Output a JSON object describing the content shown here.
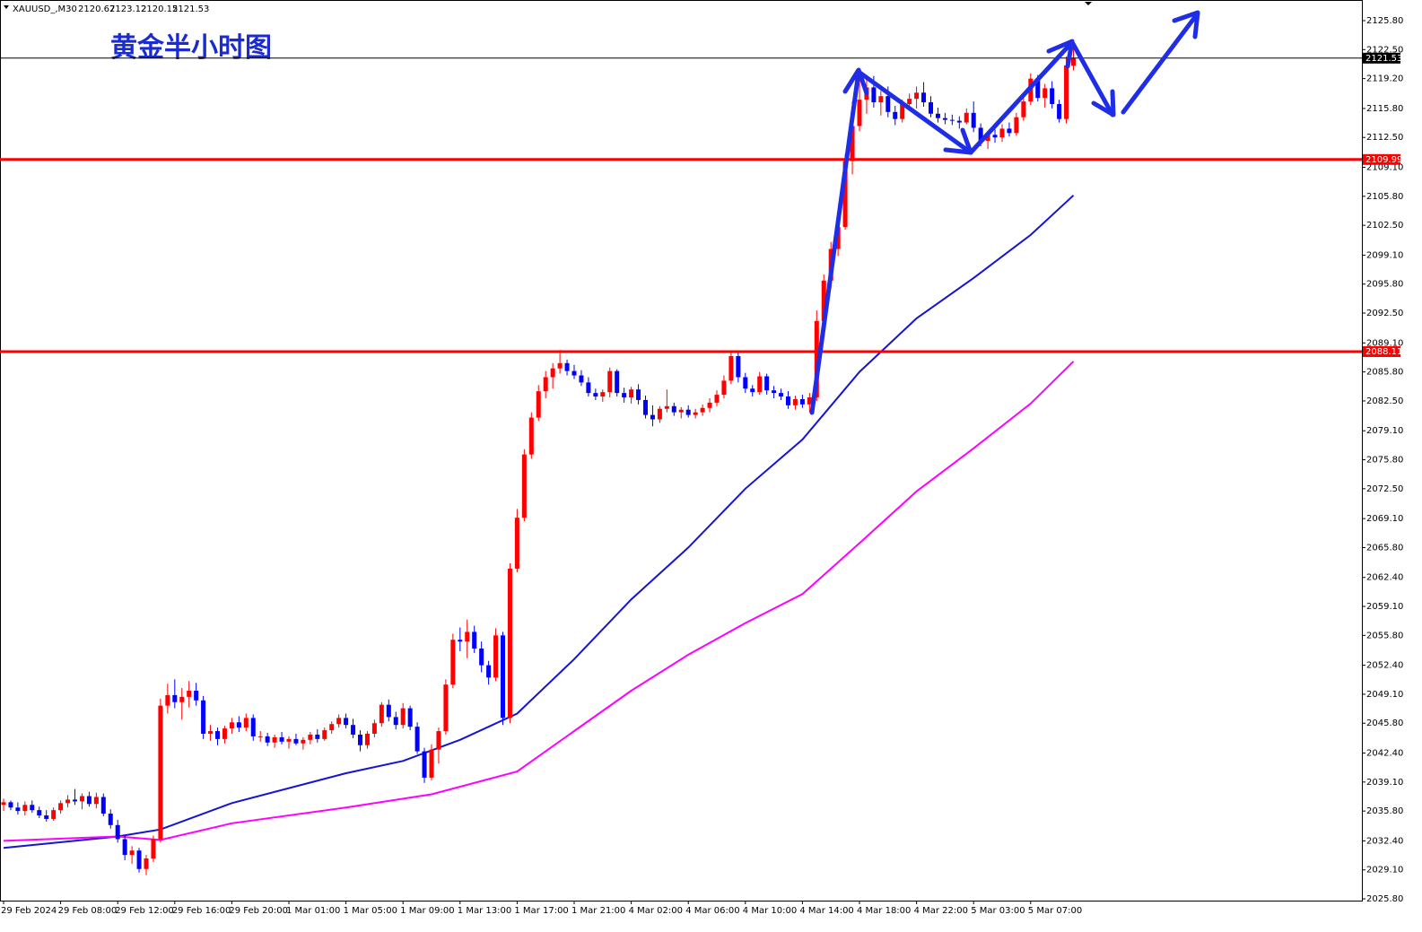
{
  "chart_data": {
    "type": "candlestick",
    "symbol": "XAUUSD_,M30",
    "title": "黄金半小时图",
    "up_color": "#ff0000",
    "down_color": "#0000ff",
    "ylim": [
      2025.6,
      2128.15
    ],
    "yticks": [
      {
        "value": 2125.8,
        "label": "2125.80"
      },
      {
        "value": 2122.5,
        "label": "2122.50"
      },
      {
        "value": 2119.2,
        "label": "2119.20"
      },
      {
        "value": 2115.8,
        "label": "2115.80"
      },
      {
        "value": 2112.5,
        "label": "2112.50"
      },
      {
        "value": 2109.1,
        "label": "2109.10"
      },
      {
        "value": 2105.8,
        "label": "2105.80"
      },
      {
        "value": 2102.5,
        "label": "2102.50"
      },
      {
        "value": 2099.1,
        "label": "2099.10"
      },
      {
        "value": 2095.8,
        "label": "2095.80"
      },
      {
        "value": 2092.5,
        "label": "2092.50"
      },
      {
        "value": 2089.1,
        "label": "2089.10"
      },
      {
        "value": 2085.8,
        "label": "2085.80"
      },
      {
        "value": 2082.5,
        "label": "2082.50"
      },
      {
        "value": 2079.1,
        "label": "2079.10"
      },
      {
        "value": 2075.8,
        "label": "2075.80"
      },
      {
        "value": 2072.5,
        "label": "2072.50"
      },
      {
        "value": 2069.1,
        "label": "2069.10"
      },
      {
        "value": 2065.8,
        "label": "2065.80"
      },
      {
        "value": 2062.4,
        "label": "2062.40"
      },
      {
        "value": 2059.1,
        "label": "2059.10"
      },
      {
        "value": 2055.8,
        "label": "2055.80"
      },
      {
        "value": 2052.4,
        "label": "2052.40"
      },
      {
        "value": 2049.1,
        "label": "2049.10"
      },
      {
        "value": 2045.8,
        "label": "2045.80"
      },
      {
        "value": 2042.4,
        "label": "2042.40"
      },
      {
        "value": 2039.1,
        "label": "2039.10"
      },
      {
        "value": 2035.8,
        "label": "2035.80"
      },
      {
        "value": 2032.4,
        "label": "2032.40"
      },
      {
        "value": 2029.1,
        "label": "2029.10"
      },
      {
        "value": 2025.8,
        "label": "2025.80"
      }
    ],
    "categories": [
      "29 Feb 2024",
      null,
      null,
      null,
      null,
      null,
      null,
      null,
      "29 Feb 08:00",
      null,
      null,
      null,
      null,
      null,
      null,
      null,
      "29 Feb 12:00",
      null,
      null,
      null,
      null,
      null,
      null,
      null,
      "29 Feb 16:00",
      null,
      null,
      null,
      null,
      null,
      null,
      null,
      "29 Feb 20:00",
      null,
      null,
      null,
      null,
      null,
      null,
      null,
      "1 Mar 01:00",
      null,
      null,
      null,
      null,
      null,
      null,
      null,
      "1 Mar 05:00",
      null,
      null,
      null,
      null,
      null,
      null,
      null,
      "1 Mar 09:00",
      null,
      null,
      null,
      null,
      null,
      null,
      null,
      "1 Mar 13:00",
      null,
      null,
      null,
      null,
      null,
      null,
      null,
      "1 Mar 17:00",
      null,
      null,
      null,
      null,
      null,
      null,
      null,
      "1 Mar 21:00",
      null,
      null,
      null,
      null,
      null,
      null,
      null,
      "4 Mar 02:00",
      null,
      null,
      null,
      null,
      null,
      null,
      null,
      "4 Mar 06:00",
      null,
      null,
      null,
      null,
      null,
      null,
      null,
      "4 Mar 10:00",
      null,
      null,
      null,
      null,
      null,
      null,
      null,
      "4 Mar 14:00",
      null,
      null,
      null,
      null,
      null,
      null,
      null,
      "4 Mar 18:00",
      null,
      null,
      null,
      null,
      null,
      null,
      null,
      "4 Mar 22:00",
      null,
      null,
      null,
      null,
      null,
      null,
      null,
      "5 Mar 03:00",
      null,
      null,
      null,
      null,
      null,
      null,
      null,
      "5 Mar 07:00",
      null,
      null,
      null,
      null,
      null,
      null
    ],
    "ohlc": [
      [
        2036.5,
        2037.2,
        2035.8,
        2036.8
      ],
      [
        2036.8,
        2037.0,
        2035.9,
        2036.2
      ],
      [
        2036.2,
        2036.8,
        2035.4,
        2035.8
      ],
      [
        2035.8,
        2036.9,
        2035.3,
        2036.5
      ],
      [
        2036.5,
        2037.0,
        2035.6,
        2035.9
      ],
      [
        2035.9,
        2036.3,
        2035.0,
        2035.3
      ],
      [
        2035.3,
        2035.9,
        2034.6,
        2034.9
      ],
      [
        2034.9,
        2036.2,
        2034.7,
        2035.9
      ],
      [
        2035.9,
        2037.0,
        2035.5,
        2036.7
      ],
      [
        2036.7,
        2037.6,
        2036.2,
        2037.1
      ],
      [
        2037.1,
        2038.3,
        2036.5,
        2036.9
      ],
      [
        2036.9,
        2037.8,
        2036.0,
        2037.5
      ],
      [
        2037.5,
        2038.0,
        2036.3,
        2036.6
      ],
      [
        2036.6,
        2037.9,
        2036.1,
        2037.4
      ],
      [
        2037.4,
        2037.8,
        2035.2,
        2035.5
      ],
      [
        2035.5,
        2036.0,
        2033.8,
        2034.2
      ],
      [
        2034.2,
        2034.8,
        2032.2,
        2032.6
      ],
      [
        2032.6,
        2033.0,
        2030.2,
        2030.8
      ],
      [
        2030.8,
        2031.8,
        2029.8,
        2031.3
      ],
      [
        2031.3,
        2031.6,
        2028.8,
        2029.2
      ],
      [
        2029.2,
        2030.8,
        2028.5,
        2030.4
      ],
      [
        2030.4,
        2033.0,
        2030.0,
        2032.6
      ],
      [
        2032.6,
        2048.6,
        2032.2,
        2047.8
      ],
      [
        2047.8,
        2050.3,
        2046.9,
        2049.0
      ],
      [
        2049.0,
        2050.8,
        2047.5,
        2048.2
      ],
      [
        2048.2,
        2049.8,
        2046.2,
        2048.8
      ],
      [
        2048.8,
        2050.6,
        2047.6,
        2049.5
      ],
      [
        2049.5,
        2050.4,
        2047.8,
        2048.4
      ],
      [
        2048.4,
        2048.9,
        2044.0,
        2044.6
      ],
      [
        2044.6,
        2045.6,
        2043.8,
        2044.9
      ],
      [
        2044.9,
        2045.3,
        2043.3,
        2044.0
      ],
      [
        2044.0,
        2045.5,
        2043.5,
        2045.2
      ],
      [
        2045.2,
        2046.4,
        2044.6,
        2045.9
      ],
      [
        2045.9,
        2046.6,
        2044.8,
        2045.3
      ],
      [
        2045.3,
        2046.9,
        2044.9,
        2046.4
      ],
      [
        2046.4,
        2046.8,
        2043.8,
        2044.3
      ],
      [
        2044.3,
        2044.9,
        2043.7,
        2044.3
      ],
      [
        2044.3,
        2044.7,
        2043.2,
        2043.6
      ],
      [
        2043.6,
        2044.5,
        2043.0,
        2044.2
      ],
      [
        2044.2,
        2044.8,
        2043.4,
        2043.7
      ],
      [
        2043.7,
        2044.3,
        2042.9,
        2044.0
      ],
      [
        2044.0,
        2044.6,
        2043.3,
        2043.5
      ],
      [
        2043.5,
        2044.2,
        2042.8,
        2043.9
      ],
      [
        2043.9,
        2044.8,
        2043.4,
        2044.5
      ],
      [
        2044.5,
        2045.1,
        2043.6,
        2044.0
      ],
      [
        2044.0,
        2045.3,
        2043.8,
        2045.0
      ],
      [
        2045.0,
        2046.0,
        2044.6,
        2045.7
      ],
      [
        2045.7,
        2046.8,
        2045.3,
        2046.4
      ],
      [
        2046.4,
        2046.9,
        2045.2,
        2045.6
      ],
      [
        2045.6,
        2046.3,
        2044.1,
        2044.5
      ],
      [
        2044.5,
        2045.0,
        2042.6,
        2043.3
      ],
      [
        2043.3,
        2044.9,
        2042.9,
        2044.6
      ],
      [
        2044.6,
        2046.2,
        2044.2,
        2045.8
      ],
      [
        2045.8,
        2048.2,
        2045.4,
        2047.9
      ],
      [
        2047.9,
        2048.5,
        2046.0,
        2046.5
      ],
      [
        2046.5,
        2047.1,
        2045.1,
        2045.6
      ],
      [
        2045.6,
        2048.1,
        2045.2,
        2047.5
      ],
      [
        2047.5,
        2047.8,
        2045.0,
        2045.4
      ],
      [
        2045.4,
        2045.9,
        2042.3,
        2042.6
      ],
      [
        2042.6,
        2043.0,
        2039.0,
        2039.6
      ],
      [
        2039.6,
        2043.4,
        2039.3,
        2042.8
      ],
      [
        2042.8,
        2045.3,
        2041.2,
        2044.9
      ],
      [
        2044.9,
        2050.8,
        2044.5,
        2050.2
      ],
      [
        2050.2,
        2056.0,
        2049.8,
        2055.3
      ],
      [
        2055.3,
        2056.7,
        2054.0,
        2055.1
      ],
      [
        2055.1,
        2057.6,
        2053.2,
        2056.2
      ],
      [
        2056.2,
        2056.9,
        2053.8,
        2054.3
      ],
      [
        2054.3,
        2055.1,
        2051.6,
        2052.4
      ],
      [
        2052.4,
        2052.9,
        2050.2,
        2051.0
      ],
      [
        2051.0,
        2056.6,
        2050.6,
        2055.8
      ],
      [
        2055.8,
        2056.2,
        2045.6,
        2046.4
      ],
      [
        2046.4,
        2064.0,
        2045.8,
        2063.4
      ],
      [
        2063.4,
        2070.2,
        2063.0,
        2069.2
      ],
      [
        2069.2,
        2077.0,
        2068.8,
        2076.4
      ],
      [
        2076.4,
        2081.2,
        2075.9,
        2080.6
      ],
      [
        2080.6,
        2084.3,
        2080.2,
        2083.6
      ],
      [
        2083.6,
        2085.9,
        2082.8,
        2085.2
      ],
      [
        2085.2,
        2086.8,
        2083.9,
        2086.2
      ],
      [
        2086.2,
        2088.3,
        2085.6,
        2086.8
      ],
      [
        2086.8,
        2087.2,
        2085.4,
        2085.9
      ],
      [
        2085.9,
        2086.6,
        2085.0,
        2085.4
      ],
      [
        2085.4,
        2086.0,
        2084.2,
        2084.6
      ],
      [
        2084.6,
        2085.2,
        2083.0,
        2083.4
      ],
      [
        2083.4,
        2083.9,
        2082.6,
        2083.0
      ],
      [
        2083.0,
        2083.8,
        2082.4,
        2083.5
      ],
      [
        2083.5,
        2086.3,
        2082.9,
        2085.9
      ],
      [
        2085.9,
        2086.1,
        2083.0,
        2083.4
      ],
      [
        2083.4,
        2084.0,
        2082.3,
        2082.9
      ],
      [
        2082.9,
        2084.1,
        2082.2,
        2083.8
      ],
      [
        2083.8,
        2084.4,
        2082.1,
        2082.6
      ],
      [
        2082.6,
        2083.1,
        2080.5,
        2080.9
      ],
      [
        2080.9,
        2082.0,
        2079.6,
        2080.4
      ],
      [
        2080.4,
        2081.9,
        2080.0,
        2081.6
      ],
      [
        2081.6,
        2083.8,
        2081.2,
        2081.9
      ],
      [
        2081.9,
        2082.3,
        2080.8,
        2081.2
      ],
      [
        2081.2,
        2081.8,
        2080.5,
        2081.5
      ],
      [
        2081.5,
        2082.0,
        2080.6,
        2080.9
      ],
      [
        2080.9,
        2081.6,
        2080.5,
        2081.2
      ],
      [
        2081.2,
        2082.1,
        2080.8,
        2081.7
      ],
      [
        2081.7,
        2082.8,
        2081.2,
        2082.3
      ],
      [
        2082.3,
        2083.7,
        2081.9,
        2083.2
      ],
      [
        2083.2,
        2085.4,
        2082.8,
        2084.8
      ],
      [
        2084.8,
        2088.2,
        2084.4,
        2087.6
      ],
      [
        2087.6,
        2088.0,
        2084.6,
        2085.2
      ],
      [
        2085.2,
        2085.7,
        2083.4,
        2083.9
      ],
      [
        2083.9,
        2084.3,
        2083.0,
        2083.5
      ],
      [
        2083.5,
        2085.8,
        2083.2,
        2085.3
      ],
      [
        2085.3,
        2085.6,
        2083.2,
        2083.7
      ],
      [
        2083.7,
        2084.2,
        2082.8,
        2083.4
      ],
      [
        2083.4,
        2083.9,
        2082.6,
        2083.0
      ],
      [
        2083.0,
        2083.6,
        2081.6,
        2082.0
      ],
      [
        2082.0,
        2083.1,
        2081.5,
        2082.7
      ],
      [
        2082.7,
        2083.2,
        2081.7,
        2082.1
      ],
      [
        2082.1,
        2083.4,
        2081.2,
        2082.9
      ],
      [
        2082.9,
        2092.8,
        2082.5,
        2091.6
      ],
      [
        2091.6,
        2096.9,
        2091.0,
        2096.2
      ],
      [
        2096.2,
        2100.6,
        2095.3,
        2099.8
      ],
      [
        2099.8,
        2103.8,
        2099.0,
        2102.3
      ],
      [
        2102.3,
        2110.6,
        2102.0,
        2109.8
      ],
      [
        2109.8,
        2116.6,
        2108.3,
        2113.8
      ],
      [
        2113.8,
        2119.8,
        2113.2,
        2116.8
      ],
      [
        2116.8,
        2119.2,
        2115.2,
        2118.2
      ],
      [
        2118.2,
        2119.5,
        2115.9,
        2116.5
      ],
      [
        2116.5,
        2117.8,
        2115.0,
        2117.2
      ],
      [
        2117.2,
        2118.3,
        2114.8,
        2115.4
      ],
      [
        2115.4,
        2116.1,
        2113.9,
        2114.6
      ],
      [
        2114.6,
        2116.8,
        2114.2,
        2116.3
      ],
      [
        2116.3,
        2117.5,
        2115.6,
        2116.9
      ],
      [
        2116.9,
        2118.3,
        2115.8,
        2117.6
      ],
      [
        2117.6,
        2118.8,
        2116.0,
        2116.5
      ],
      [
        2116.5,
        2117.2,
        2114.8,
        2115.2
      ],
      [
        2115.2,
        2115.9,
        2114.2,
        2114.7
      ],
      [
        2114.7,
        2115.3,
        2114.0,
        2114.5
      ],
      [
        2114.5,
        2115.1,
        2113.9,
        2114.4
      ],
      [
        2114.4,
        2114.9,
        2113.5,
        2114.2
      ],
      [
        2114.2,
        2115.8,
        2114.0,
        2115.3
      ],
      [
        2115.3,
        2116.6,
        2113.1,
        2113.6
      ],
      [
        2113.6,
        2114.1,
        2111.5,
        2112.1
      ],
      [
        2112.1,
        2113.2,
        2111.2,
        2112.8
      ],
      [
        2112.8,
        2113.4,
        2111.9,
        2112.5
      ],
      [
        2112.5,
        2114.0,
        2112.0,
        2113.5
      ],
      [
        2113.5,
        2114.2,
        2112.6,
        2113.0
      ],
      [
        2113.0,
        2115.3,
        2112.7,
        2114.8
      ],
      [
        2114.8,
        2117.1,
        2114.4,
        2116.6
      ],
      [
        2116.6,
        2119.8,
        2116.2,
        2119.2
      ],
      [
        2119.2,
        2119.6,
        2116.6,
        2117.0
      ],
      [
        2117.0,
        2118.6,
        2115.9,
        2118.1
      ],
      [
        2118.1,
        2118.9,
        2115.8,
        2116.3
      ],
      [
        2116.3,
        2116.8,
        2114.2,
        2114.6
      ],
      [
        2114.6,
        2121.7,
        2114.1,
        2120.7
      ],
      [
        2120.67,
        2123.12,
        2120.15,
        2121.53
      ]
    ],
    "series": [
      {
        "color": "#1414d2",
        "x": [
          0,
          16,
          22,
          32,
          48,
          56,
          64,
          72,
          80,
          88,
          96,
          104,
          112,
          120,
          128,
          136,
          144,
          150
        ],
        "values": [
          2031.6,
          2032.9,
          2033.7,
          2036.7,
          2040.1,
          2041.5,
          2043.9,
          2046.9,
          2053.1,
          2059.9,
          2065.8,
          2072.5,
          2078.1,
          2085.8,
          2091.9,
          2096.5,
          2101.4,
          2105.9
        ]
      },
      {
        "color": "#ff00ff",
        "x": [
          0,
          16,
          22,
          32,
          48,
          60,
          72,
          80,
          88,
          96,
          104,
          112,
          120,
          128,
          136,
          144,
          150
        ],
        "values": [
          2032.4,
          2032.9,
          2032.5,
          2034.4,
          2036.2,
          2037.7,
          2040.3,
          2044.9,
          2049.5,
          2053.6,
          2057.2,
          2060.5,
          2066.3,
          2072.2,
          2077.1,
          2082.2,
          2087.0
        ]
      }
    ],
    "levels": [
      {
        "value": 2109.99,
        "color": "#ff0000"
      },
      {
        "value": 2088.11,
        "color": "#ff0000"
      }
    ]
  }
}
